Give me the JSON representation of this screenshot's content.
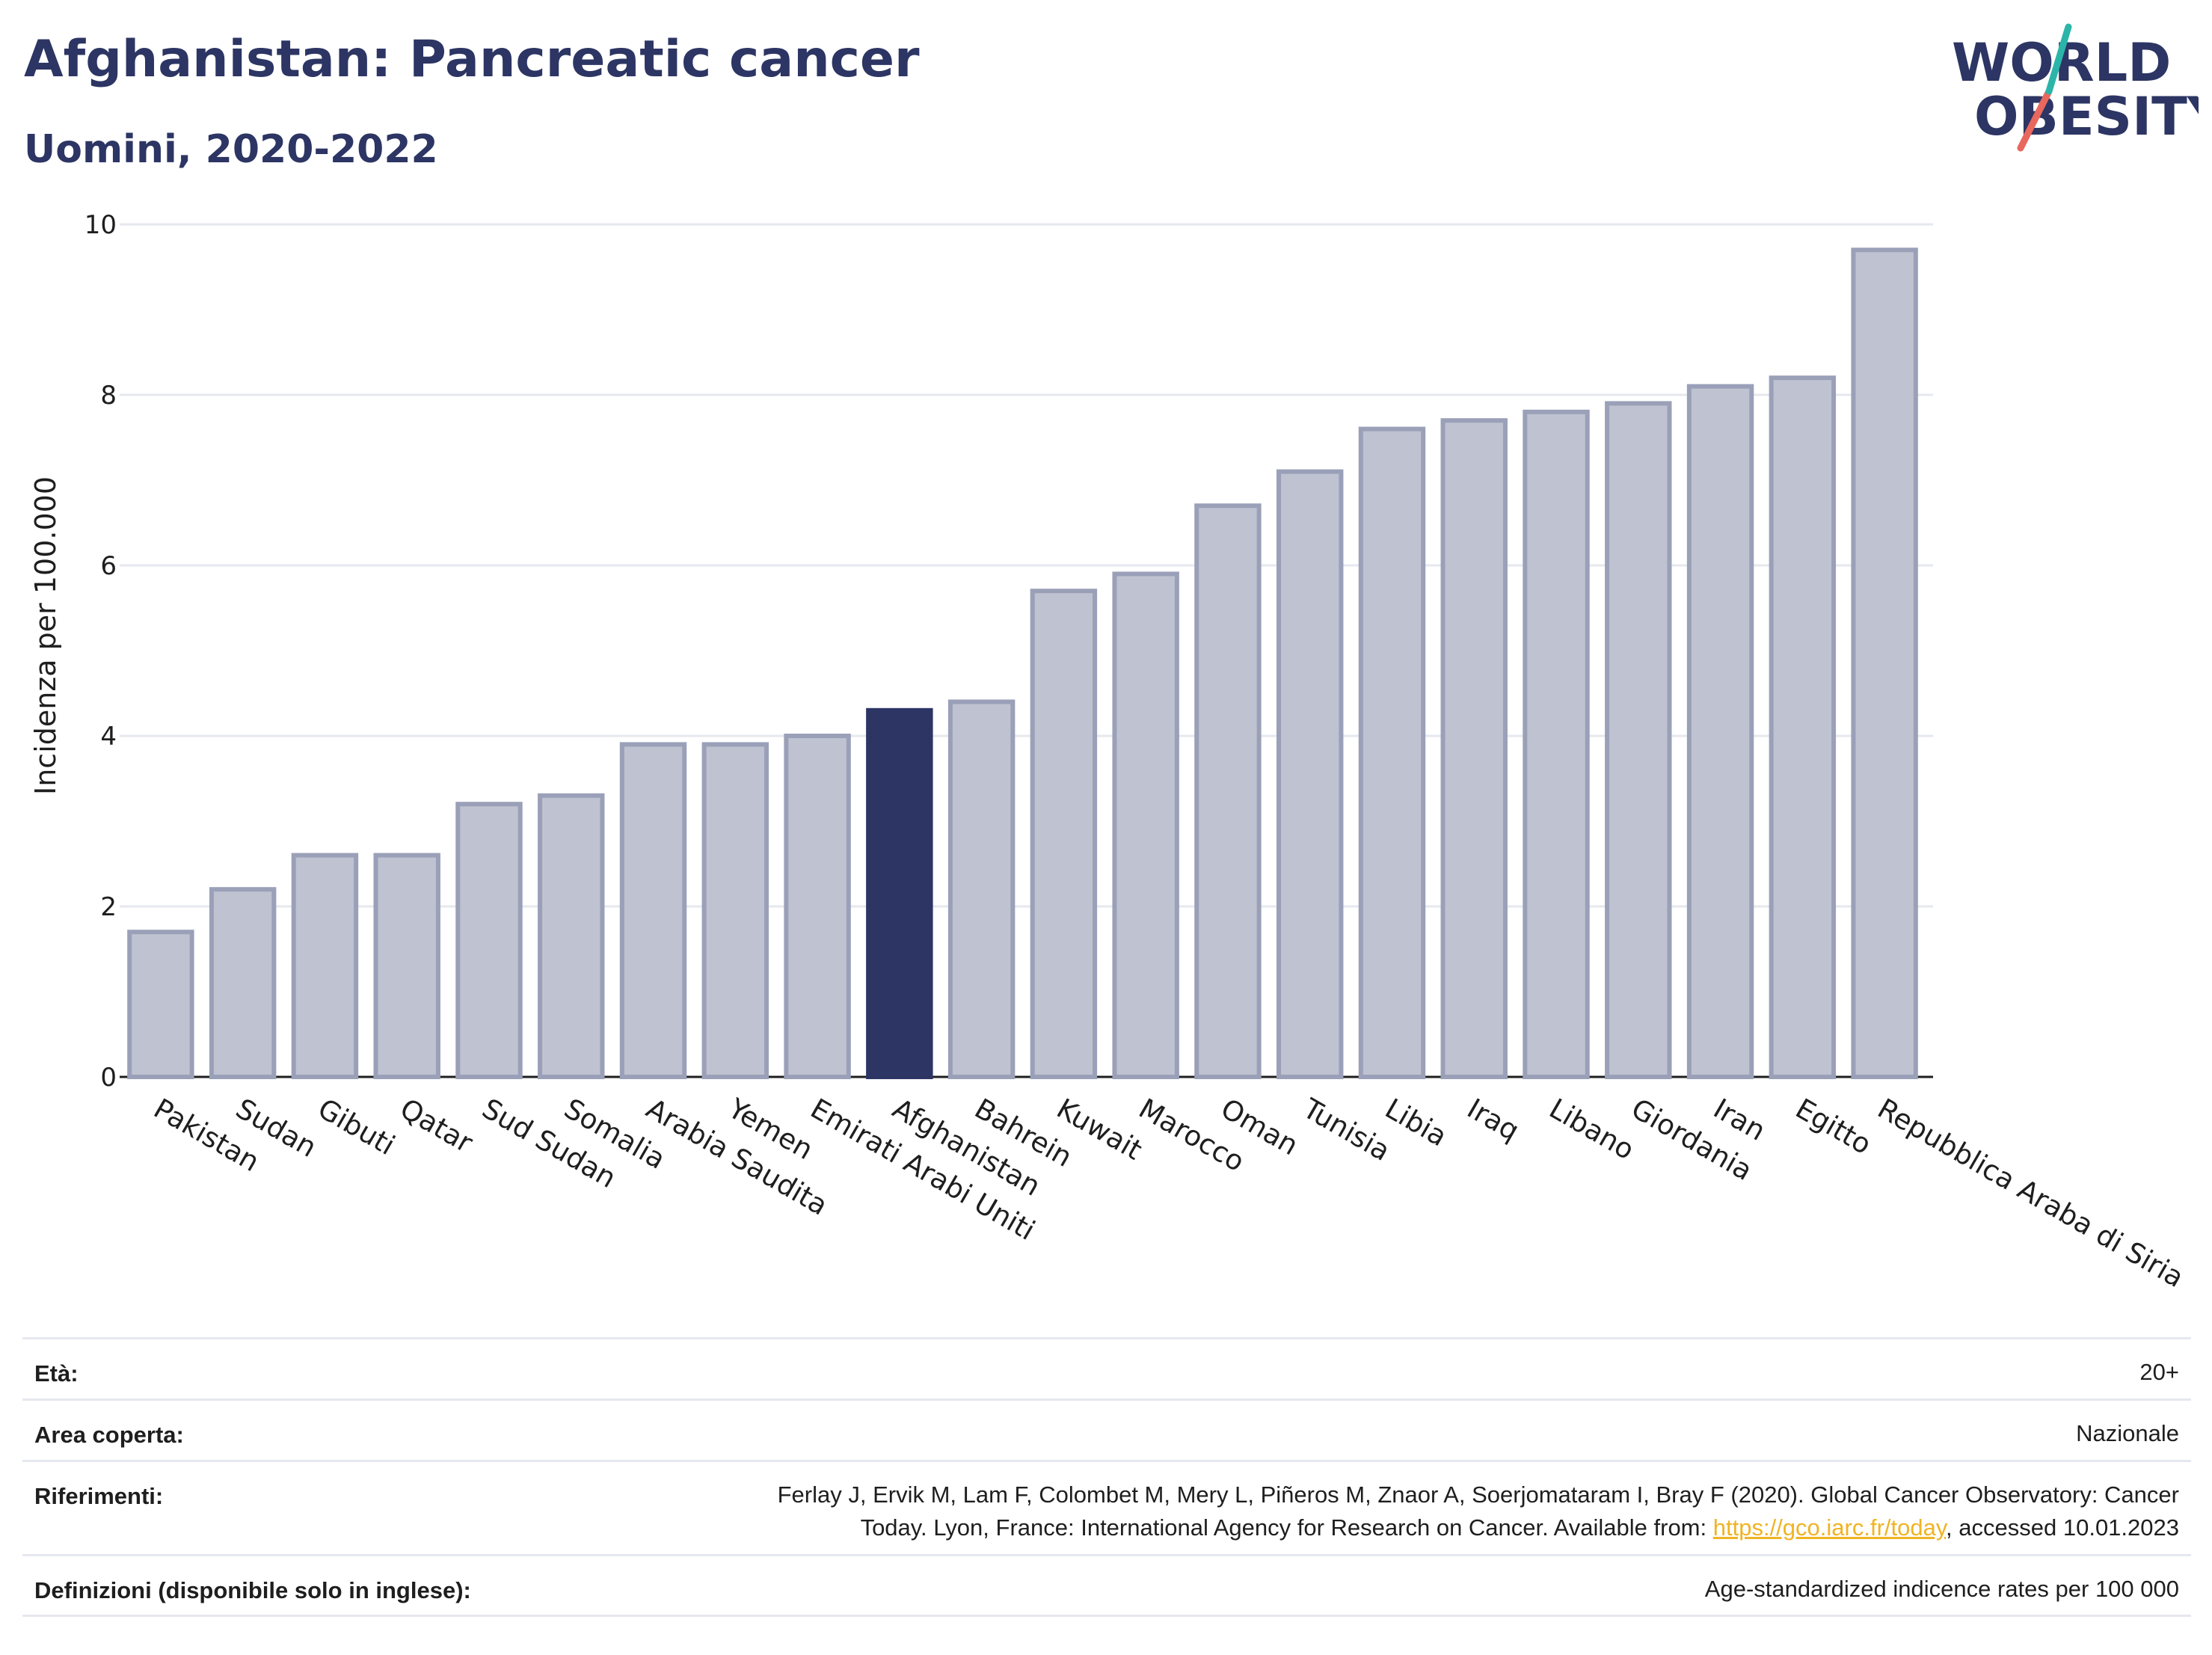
{
  "header": {
    "title": "Afghanistan: Pancreatic cancer",
    "subtitle": "Uomini, 2020-2022"
  },
  "logo": {
    "line1": "WORLD",
    "line2": "OBESITY",
    "accent_teal": "#2bb5a9",
    "accent_red": "#e8685e"
  },
  "colors": {
    "bar_default": "#bfc2d0",
    "bar_default_border": "#9aa0b8",
    "bar_highlight": "#2c3563",
    "grid": "#e6e8ef",
    "text": "#2c3563"
  },
  "chart_data": {
    "type": "bar",
    "title": "Afghanistan: Pancreatic cancer",
    "subtitle": "Uomini, 2020-2022",
    "xlabel": "",
    "ylabel": "Incidenza per 100.000",
    "ylim": [
      0,
      10
    ],
    "yticks": [
      0,
      2,
      4,
      6,
      8,
      10
    ],
    "grid": true,
    "highlight": "Afghanistan",
    "categories": [
      "Pakistan",
      "Sudan",
      "Gibuti",
      "Qatar",
      "Sud Sudan",
      "Somalia",
      "Arabia Saudita",
      "Yemen",
      "Emirati Arabi Uniti",
      "Afghanistan",
      "Bahrein",
      "Kuwait",
      "Marocco",
      "Oman",
      "Tunisia",
      "Libia",
      "Iraq",
      "Libano",
      "Giordania",
      "Iran",
      "Egitto",
      "Repubblica Araba di Siria"
    ],
    "values": [
      1.7,
      2.2,
      2.6,
      2.6,
      3.2,
      3.3,
      3.9,
      3.9,
      4.0,
      4.3,
      4.4,
      5.7,
      5.9,
      6.7,
      7.1,
      7.6,
      7.7,
      7.8,
      7.9,
      8.1,
      8.2,
      9.7
    ]
  },
  "metadata": {
    "rows": [
      {
        "label": "Età:",
        "value": "20+"
      },
      {
        "label": "Area coperta:",
        "value": "Nazionale"
      },
      {
        "label": "Riferimenti:",
        "value_line1": "Ferlay J, Ervik M, Lam F, Colombet M, Mery L, Piñeros M, Znaor A, Soerjomataram I, Bray F (2020). Global Cancer Observatory: Cancer",
        "value_line2_pre": "Today. Lyon, France: International Agency for Research on Cancer. Available from: ",
        "link": "https://gco.iarc.fr/today",
        "value_line2_post": ", accessed 10.01.2023"
      },
      {
        "label": "Definizioni (disponibile solo in inglese):",
        "value": "Age-standardized indicence rates per 100 000"
      }
    ]
  }
}
